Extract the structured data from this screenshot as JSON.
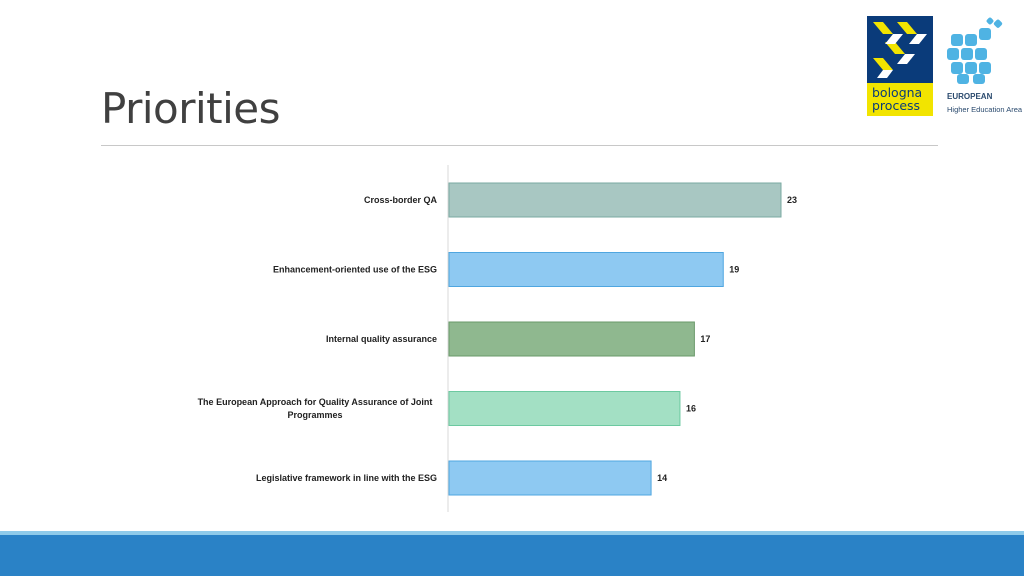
{
  "slide": {
    "title": "Priorities"
  },
  "logo": {
    "word1": "bologna",
    "word2": "process",
    "ehea_line1": "EUROPEAN",
    "ehea_line2": "Higher Education Area",
    "icon": "bologna-process-logo"
  },
  "colors": {
    "footer": "#2a82c6",
    "footer_accent": "#8fcbea"
  },
  "chart_data": {
    "type": "bar",
    "orientation": "horizontal",
    "categories": [
      "Cross-border QA",
      "Enhancement-oriented use of the ESG",
      "Internal quality assurance",
      "The European Approach for Quality Assurance of Joint Programmes",
      "Legislative framework in line with the ESG"
    ],
    "category_lines": [
      [
        "Cross-border QA"
      ],
      [
        "Enhancement-oriented use of the ESG"
      ],
      [
        "Internal quality assurance"
      ],
      [
        "The European Approach for Quality Assurance of Joint",
        "Programmes"
      ],
      [
        "Legislative framework in line with the ESG"
      ]
    ],
    "values": [
      23,
      19,
      17,
      16,
      14
    ],
    "colors": [
      "#a8c7c2",
      "#8ec9f2",
      "#8fb88f",
      "#a3e0c4",
      "#8ec9f2"
    ],
    "borders": [
      "#7aaaa2",
      "#4fa6e0",
      "#6a9a6a",
      "#6cc9a0",
      "#4fa6e0"
    ],
    "xlim": [
      0,
      23
    ],
    "data_labels": true,
    "grid": false,
    "legend": "none"
  }
}
